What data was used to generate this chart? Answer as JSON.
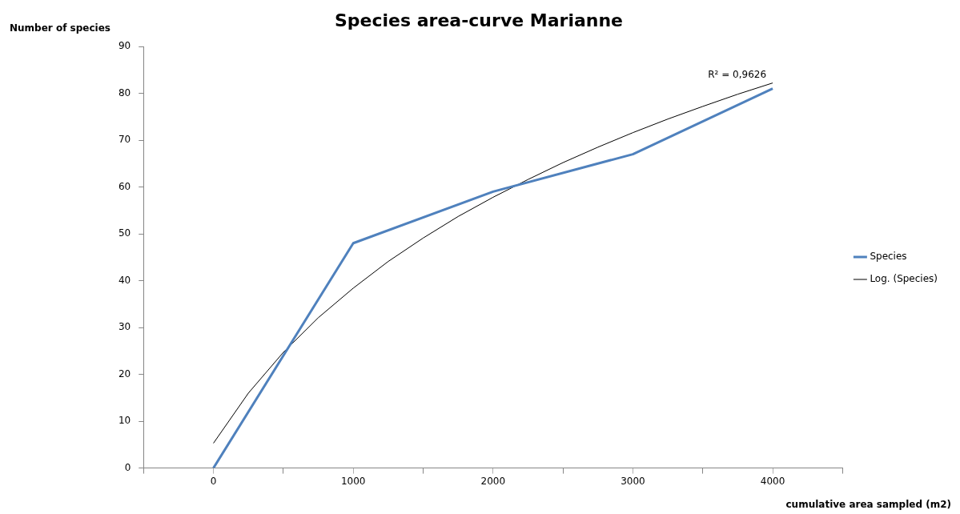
{
  "chart_data": {
    "type": "line",
    "title": "Species area-curve Marianne",
    "xlabel": "cumulative area sampled (m2)",
    "ylabel": "Number of species",
    "x": [
      0,
      1000,
      2000,
      3000,
      4000
    ],
    "series": [
      {
        "name": "Species",
        "color": "#4f81bd",
        "values": [
          0,
          48,
          59,
          67,
          81
        ]
      },
      {
        "name": "Log. (Species)",
        "color": "#000000",
        "type": "line",
        "x": [
          0,
          250,
          500,
          750,
          1000,
          1250,
          1500,
          1750,
          2000,
          2250,
          2500,
          2750,
          3000,
          3250,
          3500,
          3750,
          4000
        ],
        "values": [
          5.3,
          16.0,
          24.7,
          32.1,
          38.4,
          44.1,
          49.1,
          53.7,
          57.8,
          61.6,
          65.2,
          68.5,
          71.6,
          74.5,
          77.2,
          79.8,
          82.2
        ]
      }
    ],
    "xlim": [
      -500,
      4500
    ],
    "xticks": [
      {
        "value": -500,
        "label": null
      },
      0,
      {
        "value": 500,
        "label": null
      },
      1000,
      {
        "value": 1500,
        "label": null
      },
      2000,
      {
        "value": 2500,
        "label": null
      },
      3000,
      {
        "value": 3500,
        "label": null
      },
      4000,
      {
        "value": 4500,
        "label": null
      }
    ],
    "ylim": [
      0,
      90
    ],
    "yticks": [
      0,
      10,
      20,
      30,
      40,
      50,
      60,
      70,
      80,
      90
    ],
    "grid": false,
    "legend": "right",
    "marker": "none",
    "line_style": "solid",
    "annotations": [
      "R² = 0,9626"
    ]
  }
}
